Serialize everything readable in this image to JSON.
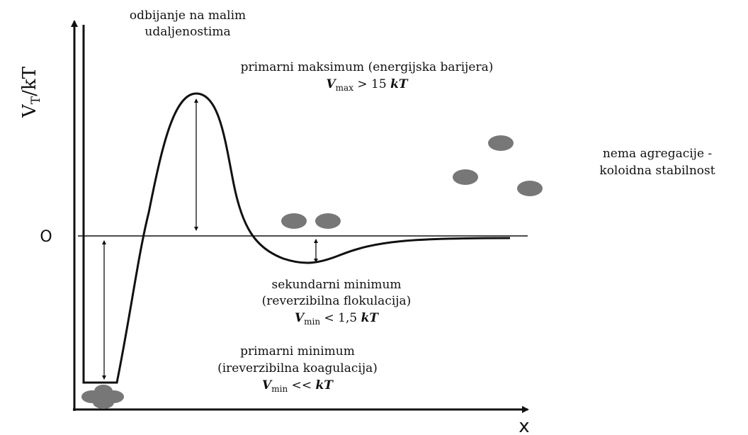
{
  "labels": {
    "repulsion": [
      "odbijanje na malim",
      "udaljenostima"
    ],
    "y_axis": {
      "symbol": "V",
      "subscript": "T",
      "rest": "/kT"
    },
    "x_axis": "x",
    "zero": "O",
    "primary_max": {
      "lines": [
        "primarni maksimum (energijska barijera)"
      ],
      "symbol": "V",
      "subscript": "max",
      "relation": " > 15 ",
      "unit": "kT"
    },
    "stability": [
      "nema agregacije -",
      "koloidna stabilnost"
    ],
    "secondary_min": {
      "lines": [
        "sekundarni minimum",
        "(reverzibilna flokulacija)"
      ],
      "symbol": "V",
      "subscript": "min",
      "relation": " < 1,5 ",
      "unit": "kT"
    },
    "primary_min": {
      "lines": [
        "primarni minimum",
        "(ireverzibilna koagulacija)"
      ],
      "symbol": "V",
      "subscript": "min",
      "relation": " << ",
      "unit": "kT"
    }
  }
}
